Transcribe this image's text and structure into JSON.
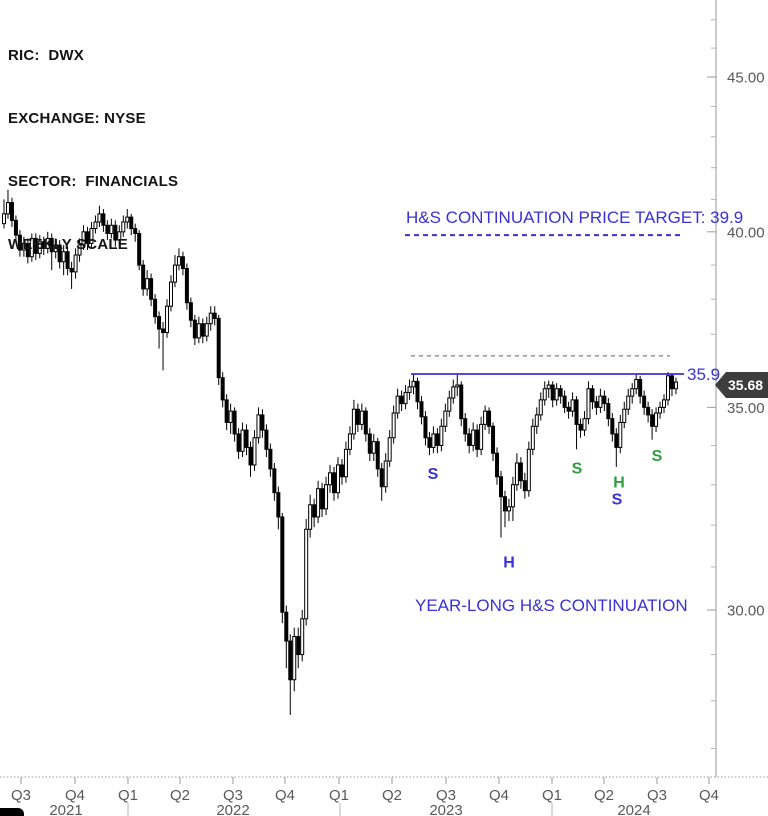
{
  "header": {
    "lines": [
      "RIC:  DWX",
      "EXCHANGE: NYSE",
      "SECTOR:  FINANCIALS",
      "WEEKLY SCALE"
    ]
  },
  "annotations": {
    "target_text": "H&S CONTINUATION PRICE TARGET: 39.9",
    "pattern_text": "YEAR-LONG H&S CONTINUATION",
    "neckline_price_label": "35.9",
    "last_price_tag": "35.68"
  },
  "colors": {
    "annotation_blue": "#3a30dd",
    "marker_green": "#2f9e3f",
    "axis_line": "#9a9a9a",
    "axis_text": "#595959",
    "minor_tick": "#b5b5b5",
    "candle": "#000000",
    "gray_dash": "#8c8c8c",
    "tag_bg": "#3d3d3d",
    "tag_text": "#ffffff"
  },
  "y_axis": {
    "major_ticks": [
      {
        "price": 45,
        "label": "45.00"
      },
      {
        "price": 40,
        "label": "40.00"
      },
      {
        "price": 35,
        "label": "35.00"
      },
      {
        "price": 30,
        "label": "30.00"
      }
    ],
    "minor_ticks": [
      47,
      46,
      44,
      43,
      42,
      41,
      39,
      38,
      37,
      36,
      34,
      33,
      32,
      31,
      29,
      28,
      27
    ]
  },
  "x_axis": {
    "quarters": [
      {
        "label": "Q3",
        "x": 21
      },
      {
        "label": "Q4",
        "x": 75
      },
      {
        "label": "Q1",
        "x": 128
      },
      {
        "label": "Q2",
        "x": 180
      },
      {
        "label": "Q3",
        "x": 233
      },
      {
        "label": "Q4",
        "x": 285
      },
      {
        "label": "Q1",
        "x": 339
      },
      {
        "label": "Q2",
        "x": 392
      },
      {
        "label": "Q3",
        "x": 446
      },
      {
        "label": "Q4",
        "x": 499
      },
      {
        "label": "Q1",
        "x": 552
      },
      {
        "label": "Q2",
        "x": 604
      },
      {
        "label": "Q3",
        "x": 657
      },
      {
        "label": "Q4",
        "x": 709
      }
    ],
    "years": [
      {
        "label": "2021",
        "x": 66
      },
      {
        "label": "2022",
        "x": 233
      },
      {
        "label": "2023",
        "x": 446
      },
      {
        "label": "2024",
        "x": 634
      }
    ],
    "year_separator_x": [
      128,
      340,
      552
    ]
  },
  "chart_data": {
    "type": "candlestick",
    "timeframe": "weekly",
    "title": "DWX weekly chart with year-long head-and-shoulders continuation",
    "y_scale": "logarithmic price axis, labels 45.00 / 40.00 / 35.00 / 30.00",
    "x_range": "Q3 2021 through Q4 2024",
    "ohlc": [
      [
        40.25,
        41.0,
        40.1,
        40.55
      ],
      [
        40.55,
        41.3,
        40.4,
        40.9
      ],
      [
        40.9,
        41.05,
        40.15,
        40.35
      ],
      [
        40.35,
        40.5,
        39.7,
        39.9
      ],
      [
        39.9,
        40.05,
        39.25,
        39.45
      ],
      [
        39.45,
        39.85,
        39.25,
        39.65
      ],
      [
        39.65,
        39.8,
        39.05,
        39.25
      ],
      [
        39.25,
        39.95,
        39.1,
        39.8
      ],
      [
        39.8,
        39.95,
        39.15,
        39.35
      ],
      [
        39.35,
        39.9,
        39.2,
        39.7
      ],
      [
        39.7,
        39.85,
        39.3,
        39.5
      ],
      [
        39.5,
        40.0,
        39.35,
        39.8
      ],
      [
        39.8,
        39.95,
        38.85,
        39.4
      ],
      [
        39.4,
        39.8,
        39.2,
        39.6
      ],
      [
        39.6,
        39.75,
        38.9,
        39.1
      ],
      [
        39.1,
        39.6,
        38.7,
        39.4
      ],
      [
        39.4,
        39.55,
        38.7,
        38.9
      ],
      [
        38.9,
        39.1,
        38.3,
        38.8
      ],
      [
        38.8,
        39.5,
        38.6,
        39.3
      ],
      [
        39.3,
        39.8,
        39.1,
        39.6
      ],
      [
        39.6,
        40.2,
        39.45,
        40.0
      ],
      [
        40.0,
        40.15,
        39.45,
        39.65
      ],
      [
        39.65,
        40.3,
        39.5,
        40.1
      ],
      [
        40.1,
        40.5,
        39.95,
        40.3
      ],
      [
        40.3,
        40.8,
        40.15,
        40.55
      ],
      [
        40.55,
        40.7,
        40.0,
        40.2
      ],
      [
        40.2,
        40.35,
        39.75,
        39.95
      ],
      [
        39.95,
        40.4,
        39.8,
        40.2
      ],
      [
        40.2,
        40.35,
        39.55,
        39.75
      ],
      [
        39.75,
        40.2,
        39.6,
        40.0
      ],
      [
        40.0,
        40.5,
        39.85,
        40.3
      ],
      [
        40.3,
        40.7,
        40.1,
        40.45
      ],
      [
        40.45,
        40.55,
        39.9,
        40.1
      ],
      [
        40.1,
        40.25,
        39.7,
        39.95
      ],
      [
        39.95,
        40.05,
        38.85,
        39.0
      ],
      [
        39.0,
        39.15,
        38.1,
        38.3
      ],
      [
        38.3,
        38.85,
        38.1,
        38.6
      ],
      [
        38.6,
        38.75,
        37.8,
        38.0
      ],
      [
        38.0,
        38.15,
        37.3,
        37.5
      ],
      [
        37.5,
        37.65,
        36.6,
        37.15
      ],
      [
        37.15,
        37.35,
        36.0,
        37.05
      ],
      [
        37.05,
        38.0,
        36.9,
        37.8
      ],
      [
        37.8,
        38.7,
        37.65,
        38.5
      ],
      [
        38.5,
        39.3,
        38.35,
        39.0
      ],
      [
        39.0,
        39.5,
        38.85,
        39.25
      ],
      [
        39.25,
        39.4,
        38.7,
        38.9
      ],
      [
        38.9,
        39.05,
        37.7,
        37.9
      ],
      [
        37.9,
        38.05,
        37.2,
        37.4
      ],
      [
        37.4,
        37.55,
        36.7,
        36.9
      ],
      [
        36.9,
        37.5,
        36.75,
        37.3
      ],
      [
        37.3,
        37.45,
        36.75,
        36.95
      ],
      [
        36.95,
        37.5,
        36.8,
        37.3
      ],
      [
        37.3,
        37.8,
        37.1,
        37.6
      ],
      [
        37.6,
        37.8,
        37.25,
        37.45
      ],
      [
        37.45,
        37.55,
        35.6,
        35.8
      ],
      [
        35.8,
        35.95,
        35.0,
        35.2
      ],
      [
        35.2,
        35.35,
        34.4,
        34.6
      ],
      [
        34.6,
        35.1,
        34.3,
        34.9
      ],
      [
        34.9,
        35.0,
        34.1,
        34.3
      ],
      [
        34.3,
        34.45,
        33.65,
        33.85
      ],
      [
        33.85,
        34.6,
        33.7,
        34.4
      ],
      [
        34.4,
        34.55,
        33.75,
        33.95
      ],
      [
        33.95,
        34.1,
        33.2,
        33.5
      ],
      [
        33.5,
        34.4,
        33.35,
        34.2
      ],
      [
        34.2,
        35.0,
        34.05,
        34.8
      ],
      [
        34.8,
        34.95,
        34.2,
        34.4
      ],
      [
        34.4,
        34.55,
        33.7,
        33.9
      ],
      [
        33.9,
        34.05,
        33.2,
        33.4
      ],
      [
        33.4,
        33.55,
        32.6,
        32.8
      ],
      [
        32.8,
        32.95,
        31.9,
        32.2
      ],
      [
        32.2,
        32.3,
        29.7,
        29.95
      ],
      [
        29.95,
        30.1,
        28.7,
        29.3
      ],
      [
        29.3,
        29.45,
        27.7,
        28.45
      ],
      [
        28.45,
        29.6,
        28.2,
        29.4
      ],
      [
        29.4,
        29.6,
        28.7,
        29.0
      ],
      [
        29.0,
        30.0,
        28.85,
        29.8
      ],
      [
        29.8,
        32.15,
        29.65,
        31.9
      ],
      [
        31.9,
        32.75,
        31.7,
        32.5
      ],
      [
        32.5,
        32.65,
        31.95,
        32.2
      ],
      [
        32.2,
        33.1,
        32.05,
        32.9
      ],
      [
        32.9,
        33.05,
        32.2,
        32.4
      ],
      [
        32.4,
        33.2,
        32.25,
        33.0
      ],
      [
        33.0,
        33.5,
        32.8,
        33.3
      ],
      [
        33.3,
        33.45,
        32.6,
        32.8
      ],
      [
        32.8,
        33.7,
        32.65,
        33.5
      ],
      [
        33.5,
        33.65,
        33.0,
        33.2
      ],
      [
        33.2,
        34.1,
        33.05,
        33.9
      ],
      [
        33.9,
        34.5,
        33.75,
        34.3
      ],
      [
        34.3,
        35.2,
        34.15,
        34.95
      ],
      [
        34.95,
        35.1,
        34.35,
        34.55
      ],
      [
        34.55,
        35.1,
        34.4,
        34.9
      ],
      [
        34.9,
        35.0,
        34.1,
        34.3
      ],
      [
        34.3,
        34.45,
        33.6,
        33.8
      ],
      [
        33.8,
        34.3,
        33.6,
        34.1
      ],
      [
        34.1,
        34.2,
        33.2,
        33.4
      ],
      [
        33.4,
        33.55,
        32.6,
        32.95
      ],
      [
        32.95,
        33.8,
        32.8,
        33.6
      ],
      [
        33.6,
        34.4,
        33.45,
        34.2
      ],
      [
        34.2,
        35.05,
        34.05,
        34.85
      ],
      [
        34.85,
        35.5,
        34.7,
        35.3
      ],
      [
        35.3,
        35.45,
        34.9,
        35.1
      ],
      [
        35.1,
        35.6,
        34.95,
        35.4
      ],
      [
        35.4,
        35.75,
        35.2,
        35.55
      ],
      [
        35.55,
        35.9,
        35.35,
        35.7
      ],
      [
        35.7,
        35.8,
        34.95,
        35.15
      ],
      [
        35.15,
        35.3,
        34.55,
        34.75
      ],
      [
        34.75,
        34.9,
        34.0,
        34.2
      ],
      [
        34.2,
        34.35,
        33.75,
        33.95
      ],
      [
        33.95,
        34.5,
        33.8,
        34.3
      ],
      [
        34.3,
        34.45,
        33.8,
        34.0
      ],
      [
        34.0,
        34.7,
        33.85,
        34.5
      ],
      [
        34.5,
        35.1,
        34.35,
        34.9
      ],
      [
        34.9,
        35.45,
        34.75,
        35.25
      ],
      [
        35.25,
        35.75,
        35.1,
        35.55
      ],
      [
        35.55,
        35.88,
        35.3,
        35.6
      ],
      [
        35.6,
        35.7,
        34.5,
        34.7
      ],
      [
        34.7,
        34.85,
        34.1,
        34.3
      ],
      [
        34.3,
        34.45,
        33.8,
        34.0
      ],
      [
        34.0,
        34.6,
        33.85,
        34.4
      ],
      [
        34.4,
        34.55,
        33.7,
        33.9
      ],
      [
        33.9,
        34.75,
        33.75,
        34.55
      ],
      [
        34.55,
        35.05,
        34.4,
        34.9
      ],
      [
        34.9,
        35.0,
        34.3,
        34.5
      ],
      [
        34.5,
        34.6,
        33.6,
        33.8
      ],
      [
        33.8,
        33.95,
        33.0,
        33.2
      ],
      [
        33.2,
        33.35,
        31.7,
        32.7
      ],
      [
        32.7,
        32.85,
        31.95,
        32.35
      ],
      [
        32.35,
        32.65,
        32.1,
        32.45
      ],
      [
        32.45,
        33.2,
        32.1,
        33.0
      ],
      [
        33.0,
        33.8,
        32.85,
        33.55
      ],
      [
        33.55,
        33.7,
        32.9,
        33.1
      ],
      [
        33.1,
        33.3,
        32.65,
        32.85
      ],
      [
        32.85,
        34.1,
        32.7,
        33.9
      ],
      [
        33.9,
        34.7,
        33.75,
        34.5
      ],
      [
        34.5,
        35.0,
        34.3,
        34.8
      ],
      [
        34.8,
        35.4,
        34.65,
        35.2
      ],
      [
        35.2,
        35.7,
        35.05,
        35.5
      ],
      [
        35.5,
        35.72,
        35.25,
        35.6
      ],
      [
        35.6,
        35.7,
        35.0,
        35.2
      ],
      [
        35.2,
        35.65,
        35.05,
        35.5
      ],
      [
        35.5,
        35.6,
        35.1,
        35.3
      ],
      [
        35.3,
        35.45,
        34.85,
        35.0
      ],
      [
        35.0,
        35.15,
        34.7,
        34.9
      ],
      [
        34.9,
        35.4,
        34.75,
        35.2
      ],
      [
        35.2,
        35.3,
        33.9,
        34.55
      ],
      [
        34.55,
        34.7,
        34.2,
        34.4
      ],
      [
        34.4,
        34.9,
        34.25,
        34.7
      ],
      [
        34.7,
        35.7,
        34.55,
        35.5
      ],
      [
        35.5,
        35.6,
        34.95,
        35.15
      ],
      [
        35.15,
        35.3,
        34.8,
        35.0
      ],
      [
        35.0,
        35.5,
        34.85,
        35.3
      ],
      [
        35.3,
        35.45,
        34.9,
        35.1
      ],
      [
        35.1,
        35.25,
        34.5,
        34.7
      ],
      [
        34.7,
        34.85,
        34.1,
        34.3
      ],
      [
        34.3,
        34.45,
        33.45,
        33.95
      ],
      [
        33.95,
        34.8,
        33.8,
        34.6
      ],
      [
        34.6,
        35.15,
        34.45,
        34.95
      ],
      [
        34.95,
        35.5,
        34.8,
        35.3
      ],
      [
        35.3,
        35.65,
        35.1,
        35.5
      ],
      [
        35.5,
        35.9,
        35.35,
        35.75
      ],
      [
        35.75,
        35.85,
        35.1,
        35.3
      ],
      [
        35.3,
        35.45,
        34.8,
        35.0
      ],
      [
        35.0,
        35.15,
        34.6,
        34.8
      ],
      [
        34.8,
        34.95,
        34.15,
        34.5
      ],
      [
        34.5,
        35.0,
        34.35,
        34.85
      ],
      [
        34.85,
        35.15,
        34.7,
        35.0
      ],
      [
        35.0,
        35.35,
        34.85,
        35.2
      ],
      [
        35.2,
        35.95,
        35.05,
        35.85
      ],
      [
        35.85,
        35.9,
        35.3,
        35.5
      ],
      [
        35.5,
        35.8,
        35.35,
        35.68
      ]
    ],
    "lines": [
      {
        "name": "neckline",
        "price": 35.9,
        "x1": 411,
        "x2": 684,
        "style": "solid",
        "color": "#3a30dd",
        "width": 1.7,
        "dash": ""
      },
      {
        "name": "price-target",
        "price": 39.9,
        "x1": 405,
        "x2": 681,
        "style": "dashed",
        "color": "#3a30dd",
        "width": 2,
        "dash": "5 4"
      },
      {
        "name": "measure",
        "price": 36.4,
        "x1": 411,
        "x2": 670,
        "style": "dashed",
        "color": "#8c8c8c",
        "width": 1.3,
        "dash": "4 4"
      }
    ],
    "markers": [
      {
        "label": "S",
        "color": "#3a30dd",
        "x": 433,
        "price": 33.3
      },
      {
        "label": "H",
        "color": "#3a30dd",
        "x": 509,
        "price": 31.13
      },
      {
        "label": "S",
        "color": "#3a30dd",
        "x": 617,
        "price": 32.66
      },
      {
        "label": "S",
        "color": "#2f9e3f",
        "x": 577,
        "price": 33.43
      },
      {
        "label": "H",
        "color": "#2f9e3f",
        "x": 619,
        "price": 33.08
      },
      {
        "label": "S",
        "color": "#2f9e3f",
        "x": 657,
        "price": 33.76
      }
    ],
    "layout": {
      "x0": 4,
      "step": 3.976,
      "scale": {
        "p1": 45,
        "y1": 77,
        "p2": 30,
        "y2": 610
      },
      "axis_x": 716,
      "axis_bottom_y": 777,
      "grid": "off",
      "legend": "none"
    }
  }
}
